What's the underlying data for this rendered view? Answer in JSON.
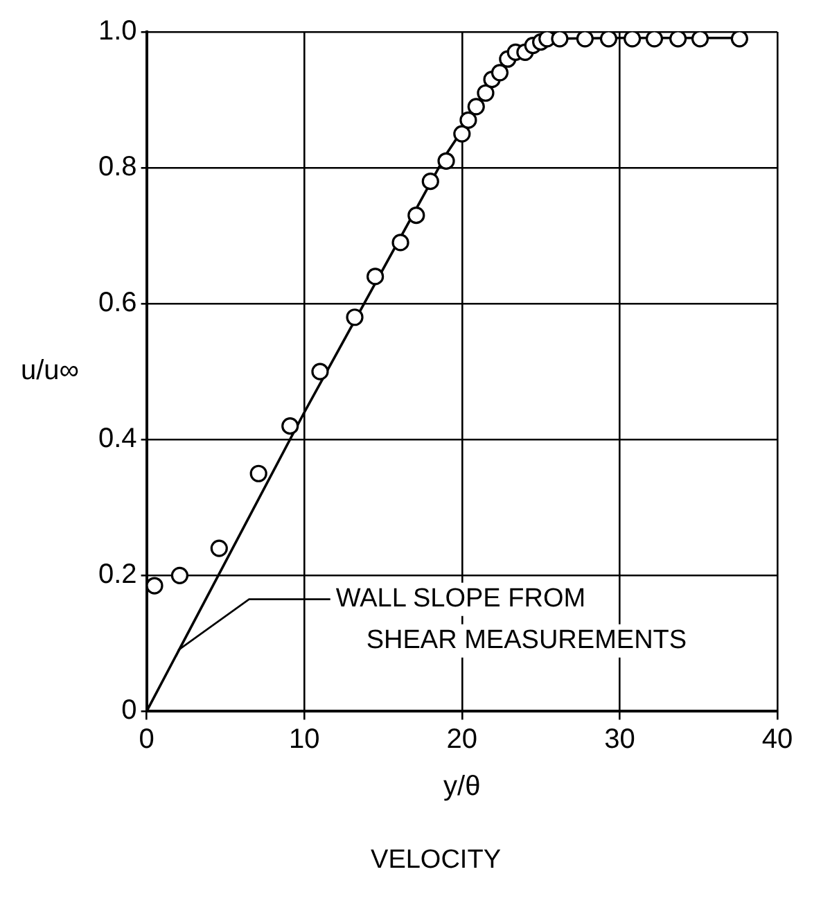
{
  "chart_data": {
    "type": "scatter",
    "title": "VELOCITY",
    "xlabel": "y/θ",
    "ylabel": "u/u∞",
    "xlim": [
      0,
      40
    ],
    "xticks": [
      0,
      10,
      20,
      30,
      40
    ],
    "ylim": [
      0,
      1
    ],
    "yticks": [
      0,
      0.2,
      0.4,
      0.6,
      0.8,
      {
        "value": 1,
        "label": "1.0"
      }
    ],
    "grid": true,
    "legend": false,
    "series": [
      {
        "color": "#000000",
        "marker": "circle",
        "x": [
          0.5,
          2.1,
          4.6,
          7.1,
          9.1,
          11.0,
          13.2,
          14.5,
          16.1,
          17.1,
          18.0,
          19.0,
          20.0,
          20.4,
          20.9,
          21.5,
          21.9,
          22.4,
          22.9,
          23.4,
          24.0,
          24.5,
          25.0,
          25.4,
          26.2,
          27.8,
          29.3,
          30.8,
          32.2,
          33.7,
          35.1,
          37.6
        ],
        "values": [
          0.185,
          0.2,
          0.24,
          0.35,
          0.42,
          0.5,
          0.58,
          0.64,
          0.69,
          0.73,
          0.78,
          0.81,
          0.85,
          0.87,
          0.89,
          0.91,
          0.93,
          0.94,
          0.96,
          0.97,
          0.97,
          0.98,
          0.985,
          0.99,
          0.99,
          0.99,
          0.99,
          0.99,
          0.99,
          0.99,
          0.99,
          0.99
        ]
      },
      {
        "type": "line",
        "color": "#000000",
        "x": [
          0,
          10,
          19,
          20,
          21,
          22,
          23,
          24,
          25,
          26,
          30,
          38
        ],
        "values": [
          0,
          0.44,
          0.82,
          0.855,
          0.895,
          0.93,
          0.958,
          0.975,
          0.986,
          0.99,
          0.991,
          0.991
        ]
      }
    ],
    "annotations": [
      {
        "text": "WALL SLOPE FROM\nSHEAR MEASUREMENTS",
        "x": 2,
        "y": 0.09
      }
    ]
  }
}
